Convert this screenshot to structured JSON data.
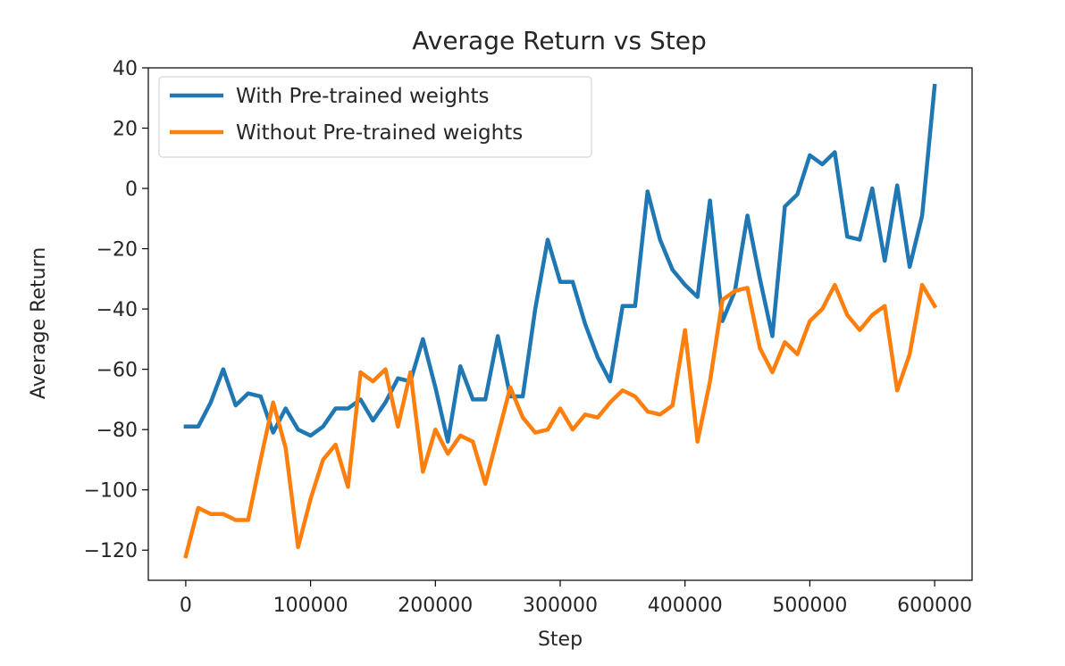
{
  "chart_data": {
    "type": "line",
    "title": "Average Return vs Step",
    "xlabel": "Step",
    "ylabel": "Average Return",
    "xlim": [
      -30000,
      630000
    ],
    "ylim": [
      -130,
      40
    ],
    "xticks": [
      0,
      100000,
      200000,
      300000,
      400000,
      500000,
      600000
    ],
    "xtick_labels": [
      "0",
      "100000",
      "200000",
      "300000",
      "400000",
      "500000",
      "600000"
    ],
    "yticks": [
      40,
      20,
      0,
      -20,
      -40,
      -60,
      -80,
      -100,
      -120
    ],
    "ytick_labels": [
      "40",
      "20",
      "0",
      "−20",
      "−40",
      "−60",
      "−80",
      "−100",
      "−120"
    ],
    "grid": false,
    "legend_position": "upper-left",
    "x": [
      0,
      10000,
      20000,
      30000,
      40000,
      50000,
      60000,
      70000,
      80000,
      90000,
      100000,
      110000,
      120000,
      130000,
      140000,
      150000,
      160000,
      170000,
      180000,
      190000,
      200000,
      210000,
      220000,
      230000,
      240000,
      250000,
      260000,
      270000,
      280000,
      290000,
      300000,
      310000,
      320000,
      330000,
      340000,
      350000,
      360000,
      370000,
      380000,
      390000,
      400000,
      410000,
      420000,
      430000,
      440000,
      450000,
      460000,
      470000,
      480000,
      490000,
      500000,
      510000,
      520000,
      530000,
      540000,
      550000,
      560000,
      570000,
      580000,
      590000,
      600000
    ],
    "series": [
      {
        "name": "With Pre-trained weights",
        "color": "#1f77b4",
        "values": [
          -79,
          -79,
          -71,
          -60,
          -72,
          -68,
          -69,
          -81,
          -73,
          -80,
          -82,
          -79,
          -73,
          -73,
          -70,
          -77,
          -71,
          -63,
          -64,
          -50,
          -66,
          -84,
          -59,
          -70,
          -70,
          -49,
          -69,
          -69,
          -40,
          -17,
          -31,
          -31,
          -45,
          -56,
          -64,
          -39,
          -39,
          -1,
          -17,
          -27,
          -32,
          -36,
          -4,
          -44,
          -34,
          -9,
          -30,
          -49,
          -6,
          -2,
          11,
          8,
          12,
          -16,
          -17,
          0,
          -24,
          1,
          -26,
          -9,
          34
        ]
      },
      {
        "name": "Without Pre-trained weights",
        "color": "#ff7f0e",
        "values": [
          -122,
          -106,
          -108,
          -108,
          -110,
          -110,
          -90,
          -71,
          -86,
          -119,
          -103,
          -90,
          -85,
          -99,
          -61,
          -64,
          -60,
          -79,
          -61,
          -94,
          -80,
          -88,
          -82,
          -84,
          -98,
          -82,
          -66,
          -76,
          -81,
          -80,
          -73,
          -80,
          -75,
          -76,
          -71,
          -67,
          -69,
          -74,
          -75,
          -72,
          -47,
          -84,
          -64,
          -37,
          -34,
          -33,
          -53,
          -61,
          -51,
          -55,
          -44,
          -40,
          -32,
          -42,
          -47,
          -42,
          -39,
          -67,
          -55,
          -32,
          -39
        ]
      }
    ]
  }
}
